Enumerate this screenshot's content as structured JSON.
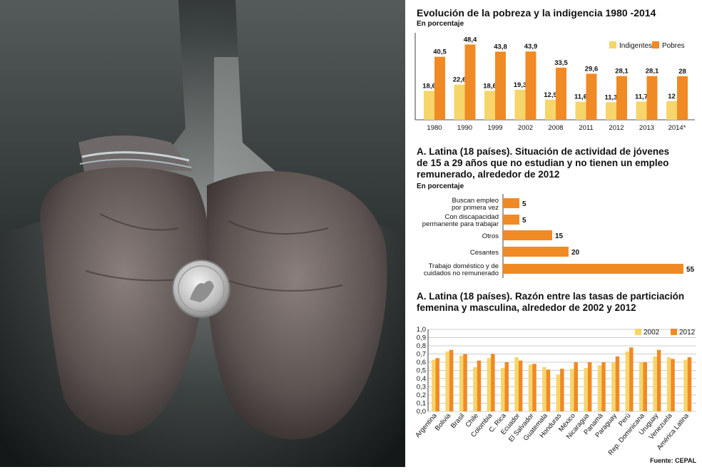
{
  "colors": {
    "yellow": "#f6d56a",
    "orange": "#f08a24",
    "text": "#111111"
  },
  "chart_data": [
    {
      "type": "bar",
      "title": "Evolución de la pobreza y la indigencia 1980 -2014",
      "subtitle": "En porcentaje",
      "categories": [
        "1980",
        "1990",
        "1999",
        "2002",
        "2008",
        "2011",
        "2012",
        "2013",
        "2014*"
      ],
      "series": [
        {
          "name": "Indigentes",
          "color": "#f6d56a",
          "values": [
            18.6,
            22.6,
            18.6,
            19.3,
            12.9,
            11.6,
            11.3,
            11.7,
            12
          ],
          "labels": [
            "18,6",
            "22,6",
            "18,6",
            "19,3",
            "12,9",
            "11,6",
            "11,3",
            "11,7",
            "12"
          ]
        },
        {
          "name": "Pobres",
          "color": "#f08a24",
          "values": [
            40.5,
            48.4,
            43.8,
            43.9,
            33.5,
            29.6,
            28.1,
            28.1,
            28
          ],
          "labels": [
            "40,5",
            "48,4",
            "43,8",
            "43,9",
            "33,5",
            "29,6",
            "28,1",
            "28,1",
            "28"
          ]
        }
      ],
      "ylim": [
        0,
        55
      ],
      "legend": "top-right"
    },
    {
      "type": "bar",
      "orientation": "horizontal",
      "title_lines": [
        "A. Latina (18 países). Situación de actividad de jóvenes",
        "de 15 a 29 años que no estudian y no tienen un empleo",
        "remunerado, alrededor de 2012"
      ],
      "subtitle": "En porcentaje",
      "categories": [
        [
          "Buscan empleo",
          "por primera vez"
        ],
        [
          "Con discapacidad",
          "permanente para trabajar"
        ],
        [
          "Otros"
        ],
        [
          "Cesantes"
        ],
        [
          "Trabajo doméstico y de",
          "cuidados no remunerado"
        ]
      ],
      "values": [
        5,
        5,
        15,
        20,
        55
      ],
      "labels": [
        "5",
        "5",
        "15",
        "20",
        "55"
      ],
      "color": "#f08a24",
      "xlim": [
        0,
        55
      ]
    },
    {
      "type": "bar",
      "title_lines": [
        "A. Latina (18 países). Razón entre las tasas de particiación",
        "femenina y masculina, alrededor de 2002 y 2012"
      ],
      "categories": [
        "Argentina",
        "Bolivia",
        "Brasil",
        "Chile",
        "Colombia",
        "C. Rica",
        "Ecuador",
        "El Salvador",
        "Guatemala",
        "Honduras",
        "México",
        "Nicaragua",
        "Panamá",
        "Paraguay",
        "Perú",
        "Rep. Dominicana",
        "Uruguay",
        "Venezuela",
        "América Latina"
      ],
      "series": [
        {
          "name": "2002",
          "color": "#f6d56a",
          "values": [
            0.63,
            0.73,
            0.68,
            0.54,
            0.65,
            0.53,
            0.66,
            0.57,
            0.54,
            0.45,
            0.52,
            0.53,
            0.56,
            0.6,
            0.73,
            0.6,
            0.67,
            0.66,
            0.63
          ]
        },
        {
          "name": "2012",
          "color": "#f08a24",
          "values": [
            0.65,
            0.75,
            0.7,
            0.62,
            0.7,
            0.6,
            0.62,
            0.58,
            0.51,
            0.52,
            0.6,
            0.6,
            0.6,
            0.67,
            0.78,
            0.6,
            0.75,
            0.64,
            0.66
          ]
        }
      ],
      "yticks": [
        "1,0",
        "0,9",
        "0,8",
        "0,7",
        "0,6",
        "0,5",
        "0,4",
        "0,3",
        "0,2",
        "0,1",
        "0,0"
      ],
      "ylim": [
        0,
        1.0
      ],
      "grid": true,
      "legend": "top-right"
    }
  ],
  "source": "Fuente: CEPAL"
}
